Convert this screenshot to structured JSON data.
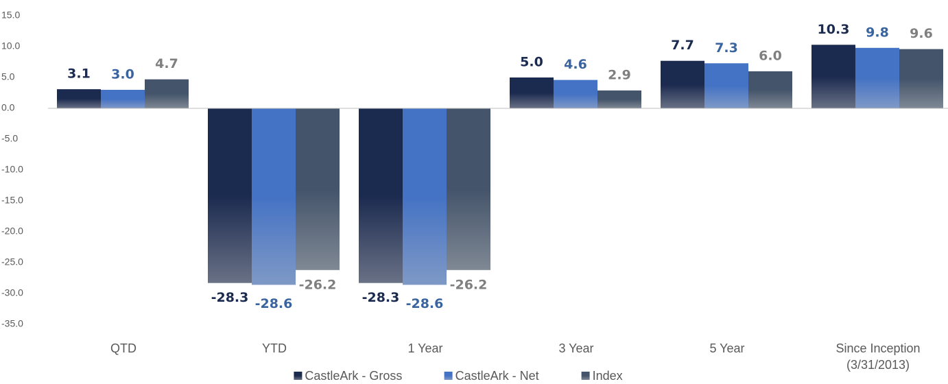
{
  "chart_data": {
    "type": "bar",
    "categories": [
      "QTD",
      "YTD",
      "1 Year",
      "3 Year",
      "5 Year",
      "Since Inception\n(3/31/2013)"
    ],
    "series": [
      {
        "name": "CastleArk - Gross",
        "color": "#1b2a4f",
        "label_color": "#1b2a4f",
        "values": [
          3.1,
          -28.3,
          -28.3,
          5.0,
          7.7,
          10.3
        ],
        "value_labels": [
          "3.1",
          "-28.3",
          "-28.3",
          "5.0",
          "7.7",
          "10.3"
        ]
      },
      {
        "name": "CastleArk - Net",
        "color": "#4472c4",
        "label_color": "#3a64a0",
        "values": [
          3.0,
          -28.6,
          -28.6,
          4.6,
          7.3,
          9.8
        ],
        "value_labels": [
          "3.0",
          "-28.6",
          "-28.6",
          "4.6",
          "7.3",
          "9.8"
        ]
      },
      {
        "name": "Index",
        "color": "#44546a",
        "label_color": "#7f7f7f",
        "values": [
          4.7,
          -26.2,
          -26.2,
          2.9,
          6.0,
          9.6
        ],
        "value_labels": [
          "4.7",
          "-26.2",
          "-26.2",
          "2.9",
          "6.0",
          "9.6"
        ]
      }
    ],
    "ylim": [
      -35,
      15
    ],
    "yticks": [
      {
        "value": 15,
        "label": "15.0"
      },
      {
        "value": 10,
        "label": "10.0"
      },
      {
        "value": 5,
        "label": "5.0"
      },
      {
        "value": 0,
        "label": "0.0"
      },
      {
        "value": -5,
        "label": "-5.0"
      },
      {
        "value": -10,
        "label": "-10.0"
      },
      {
        "value": -15,
        "label": "-15.0"
      },
      {
        "value": -20,
        "label": "-20.0"
      },
      {
        "value": -25,
        "label": "-25.0"
      },
      {
        "value": -30,
        "label": "-30.0"
      },
      {
        "value": -35,
        "label": "-35.0"
      }
    ],
    "grid": false,
    "legend": "bottom"
  }
}
